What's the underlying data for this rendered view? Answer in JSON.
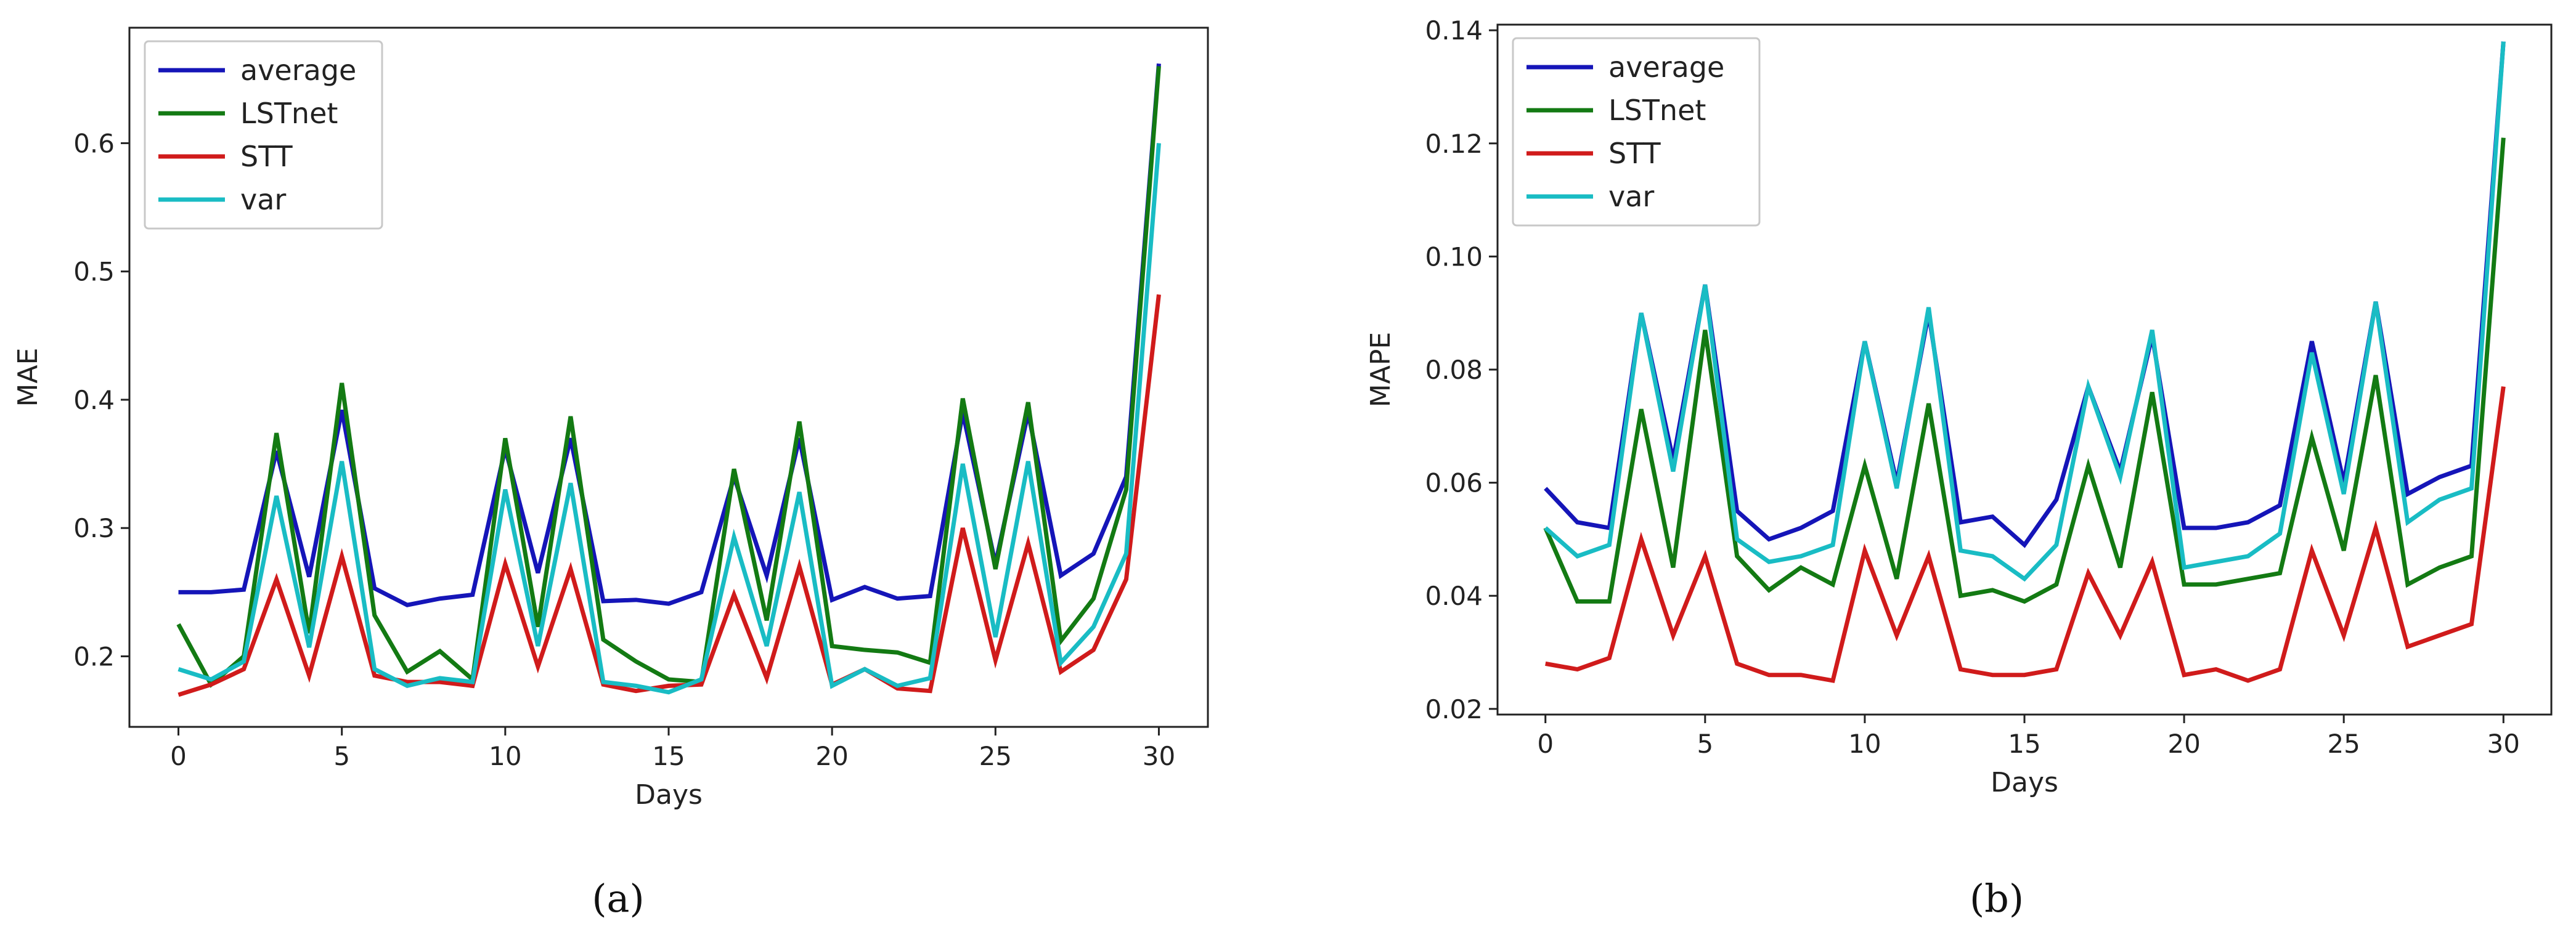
{
  "chart_data": [
    {
      "type": "line",
      "caption": "(a)",
      "xlabel": "Days",
      "ylabel": "MAE",
      "xlim": [
        -1.5,
        31.5
      ],
      "ylim": [
        0.145,
        0.69
      ],
      "xticks": [
        0,
        5,
        10,
        15,
        20,
        25,
        30
      ],
      "yticks": [
        0.2,
        0.3,
        0.4,
        0.5,
        0.6
      ],
      "ytick_labels": [
        "0.2",
        "0.3",
        "0.4",
        "0.5",
        "0.6"
      ],
      "grid": false,
      "legend": "top-left",
      "x": [
        0,
        1,
        2,
        3,
        4,
        5,
        6,
        7,
        8,
        9,
        10,
        11,
        12,
        13,
        14,
        15,
        16,
        17,
        18,
        19,
        20,
        21,
        22,
        23,
        24,
        25,
        26,
        27,
        28,
        29,
        30
      ],
      "series": [
        {
          "name": "average",
          "color": "#1515b8",
          "values": [
            0.25,
            0.25,
            0.252,
            0.36,
            0.262,
            0.392,
            0.253,
            0.24,
            0.245,
            0.248,
            0.362,
            0.265,
            0.37,
            0.243,
            0.244,
            0.241,
            0.25,
            0.34,
            0.263,
            0.37,
            0.244,
            0.254,
            0.245,
            0.247,
            0.39,
            0.272,
            0.39,
            0.263,
            0.28,
            0.34,
            0.662
          ]
        },
        {
          "name": "LSTnet",
          "color": "#137a13",
          "values": [
            0.225,
            0.178,
            0.2,
            0.374,
            0.218,
            0.413,
            0.232,
            0.188,
            0.204,
            0.182,
            0.37,
            0.223,
            0.387,
            0.213,
            0.196,
            0.182,
            0.18,
            0.346,
            0.228,
            0.383,
            0.208,
            0.205,
            0.203,
            0.195,
            0.401,
            0.268,
            0.398,
            0.212,
            0.245,
            0.33,
            0.66
          ]
        },
        {
          "name": "STT",
          "color": "#d01b1b",
          "values": [
            0.17,
            0.178,
            0.19,
            0.26,
            0.185,
            0.278,
            0.185,
            0.18,
            0.18,
            0.177,
            0.272,
            0.192,
            0.268,
            0.178,
            0.173,
            0.177,
            0.178,
            0.248,
            0.183,
            0.27,
            0.178,
            0.19,
            0.175,
            0.173,
            0.3,
            0.197,
            0.288,
            0.188,
            0.205,
            0.26,
            0.482
          ]
        },
        {
          "name": "var",
          "color": "#19bcc4",
          "values": [
            0.19,
            0.182,
            0.196,
            0.325,
            0.207,
            0.352,
            0.19,
            0.177,
            0.183,
            0.18,
            0.33,
            0.208,
            0.335,
            0.18,
            0.177,
            0.172,
            0.182,
            0.293,
            0.208,
            0.328,
            0.177,
            0.19,
            0.177,
            0.183,
            0.35,
            0.215,
            0.352,
            0.195,
            0.223,
            0.28,
            0.6
          ]
        }
      ]
    },
    {
      "type": "line",
      "caption": "(b)",
      "xlabel": "Days",
      "ylabel": "MAPE",
      "xlim": [
        -1.5,
        31.5
      ],
      "ylim": [
        0.019,
        0.141
      ],
      "xticks": [
        0,
        5,
        10,
        15,
        20,
        25,
        30
      ],
      "yticks": [
        0.02,
        0.04,
        0.06,
        0.08,
        0.1,
        0.12,
        0.14
      ],
      "ytick_labels": [
        "0.02",
        "0.04",
        "0.06",
        "0.08",
        "0.10",
        "0.12",
        "0.14"
      ],
      "grid": false,
      "legend": "top-left",
      "x": [
        0,
        1,
        2,
        3,
        4,
        5,
        6,
        7,
        8,
        9,
        10,
        11,
        12,
        13,
        14,
        15,
        16,
        17,
        18,
        19,
        20,
        21,
        22,
        23,
        24,
        25,
        26,
        27,
        28,
        29,
        30
      ],
      "series": [
        {
          "name": "average",
          "color": "#1515b8",
          "values": [
            0.059,
            0.053,
            0.052,
            0.09,
            0.064,
            0.095,
            0.055,
            0.05,
            0.052,
            0.055,
            0.085,
            0.06,
            0.09,
            0.053,
            0.054,
            0.049,
            0.057,
            0.077,
            0.062,
            0.086,
            0.052,
            0.052,
            0.053,
            0.056,
            0.085,
            0.06,
            0.092,
            0.058,
            0.061,
            0.063,
            0.138
          ]
        },
        {
          "name": "LSTnet",
          "color": "#137a13",
          "values": [
            0.052,
            0.039,
            0.039,
            0.073,
            0.045,
            0.087,
            0.047,
            0.041,
            0.045,
            0.042,
            0.063,
            0.043,
            0.074,
            0.04,
            0.041,
            0.039,
            0.042,
            0.063,
            0.045,
            0.076,
            0.042,
            0.042,
            0.043,
            0.044,
            0.068,
            0.048,
            0.079,
            0.042,
            0.045,
            0.047,
            0.121
          ]
        },
        {
          "name": "STT",
          "color": "#d01b1b",
          "values": [
            0.028,
            0.027,
            0.029,
            0.05,
            0.033,
            0.047,
            0.028,
            0.026,
            0.026,
            0.025,
            0.048,
            0.033,
            0.047,
            0.027,
            0.026,
            0.026,
            0.027,
            0.044,
            0.033,
            0.046,
            0.026,
            0.027,
            0.025,
            0.027,
            0.048,
            0.033,
            0.052,
            0.031,
            0.033,
            0.035,
            0.077
          ]
        },
        {
          "name": "var",
          "color": "#19bcc4",
          "values": [
            0.052,
            0.047,
            0.049,
            0.09,
            0.062,
            0.095,
            0.05,
            0.046,
            0.047,
            0.049,
            0.085,
            0.059,
            0.091,
            0.048,
            0.047,
            0.043,
            0.049,
            0.077,
            0.061,
            0.087,
            0.045,
            0.046,
            0.047,
            0.051,
            0.083,
            0.058,
            0.092,
            0.053,
            0.057,
            0.059,
            0.138
          ]
        }
      ]
    }
  ]
}
